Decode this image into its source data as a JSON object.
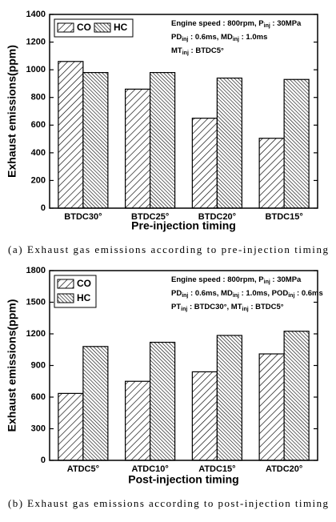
{
  "chart_data": [
    {
      "type": "bar",
      "categories": [
        "BTDC30°",
        "BTDC25°",
        "BTDC20°",
        "BTDC15°"
      ],
      "series": [
        {
          "name": "CO",
          "color": "#000000",
          "hatch": "/",
          "values": [
            1060,
            860,
            650,
            505
          ]
        },
        {
          "name": "HC",
          "color": "#000000",
          "hatch": "\\",
          "values": [
            980,
            980,
            940,
            930
          ]
        }
      ],
      "ylim": [
        0,
        1400
      ],
      "yticks": [
        0,
        200,
        400,
        600,
        800,
        1000,
        1200,
        1400
      ],
      "x_label": "Pre-injection timing",
      "y_label": "Exhaust emissions(ppm)",
      "legend": "upper left",
      "legend_columns": 2,
      "annotations": [
        [
          "Engine speed : 800rpm, P",
          "inj",
          " : 30MPa"
        ],
        [
          "PD",
          "inj",
          " : 0.6ms, MD",
          "inj",
          " : 1.0ms"
        ],
        [
          "MT",
          "inj",
          " : BTDC5°"
        ]
      ],
      "caption": "(a) Exhaust gas emissions according to pre-injection timing"
    },
    {
      "type": "bar",
      "categories": [
        "ATDC5°",
        "ATDC10°",
        "ATDC15°",
        "ATDC20°"
      ],
      "series": [
        {
          "name": "CO",
          "color": "#000000",
          "hatch": "/",
          "values": [
            635,
            750,
            840,
            1010
          ]
        },
        {
          "name": "HC",
          "color": "#000000",
          "hatch": "\\",
          "values": [
            1080,
            1120,
            1185,
            1225
          ]
        }
      ],
      "ylim": [
        0,
        1800
      ],
      "yticks": [
        0,
        300,
        600,
        900,
        1200,
        1500,
        1800
      ],
      "x_label": "Post-injection timing",
      "y_label": "Exhaust emissions(ppm)",
      "legend": "upper left",
      "legend_columns": 1,
      "annotations": [
        [
          "Engine speed : 800rpm, P",
          "inj",
          " : 30MPa"
        ],
        [
          "PD",
          "inj",
          " : 0.6ms, MD",
          "inj",
          " : 1.0ms, POD",
          "inj",
          " : 0.6ms"
        ],
        [
          "PT",
          "inj",
          " : BTDC30°, MT",
          "inj",
          " : BTDC5°"
        ]
      ],
      "caption": "(b) Exhaust gas emissions according to post-injection timing"
    }
  ]
}
